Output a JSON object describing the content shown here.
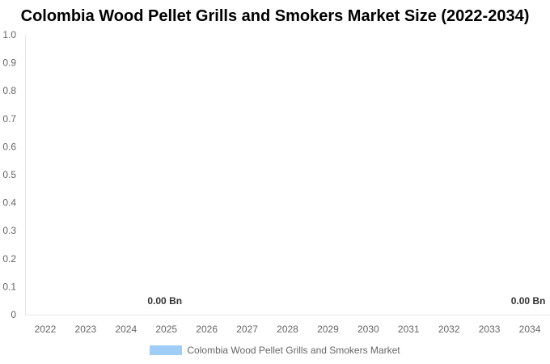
{
  "colors": {
    "series": "#a0cdf7",
    "axis": "#e6e6e6",
    "tick_text": "#666666",
    "label_text": "#333333"
  },
  "chart_data": {
    "type": "bar",
    "title": "Colombia Wood Pellet Grills and Smokers Market Size (2022-2034)",
    "xlabel": "",
    "ylabel": "",
    "ylim": [
      0,
      1.0
    ],
    "yticks": [
      "0",
      "0.1",
      "0.2",
      "0.3",
      "0.4",
      "0.5",
      "0.6",
      "0.7",
      "0.8",
      "0.9",
      "1.0"
    ],
    "grid": false,
    "legend_position": "bottom",
    "categories": [
      "2022",
      "2023",
      "2024",
      "2025",
      "2026",
      "2027",
      "2028",
      "2029",
      "2030",
      "2031",
      "2032",
      "2033",
      "2034"
    ],
    "series": [
      {
        "name": "Colombia Wood Pellet Grills and Smokers Market",
        "values": [
          0,
          0,
          0,
          0,
          0,
          0,
          0,
          0,
          0,
          0,
          0,
          0,
          0
        ]
      }
    ],
    "data_labels": [
      {
        "category": "2025",
        "text": "0.00 Bn"
      },
      {
        "category": "2034",
        "text": "0.00 Bn"
      }
    ]
  }
}
